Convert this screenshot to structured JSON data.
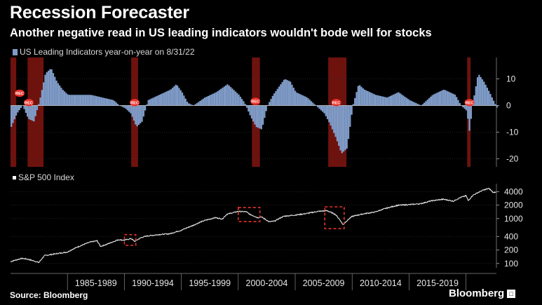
{
  "header": {
    "title": "Recession Forecaster",
    "subtitle": "Another negative read in US leading indicators wouldn't bode well for stocks"
  },
  "footer": {
    "source": "Source: Bloomberg",
    "brand": "Bloomberg"
  },
  "colors": {
    "background": "#000000",
    "bars": "#7f9cc8",
    "recession": "#7a1410",
    "highlight_box": "#e8322b",
    "sp_line": "#e6e6e6"
  },
  "chart_data": [
    {
      "type": "bar",
      "legend": "US Leading Indicators year-on-year on 8/31/22",
      "y_ticks": [
        "10",
        "0",
        "-10",
        "-20"
      ],
      "ylim": [
        -23,
        18
      ],
      "xlim": [
        1980.0,
        2022.67
      ],
      "recession_periods": [
        [
          1980.0,
          1980.5
        ],
        [
          1981.5,
          1982.9
        ],
        [
          1990.6,
          1991.2
        ],
        [
          2001.2,
          2001.9
        ],
        [
          2007.9,
          2009.5
        ],
        [
          2020.1,
          2020.4
        ]
      ],
      "series": [
        {
          "x": [
            1980.0,
            1980.5,
            1981.0,
            1981.5,
            1982.0,
            1982.5,
            1983.0,
            1983.5,
            1984.0,
            1984.5,
            1985.0,
            1986.0,
            1987.0,
            1988.0,
            1989.0,
            1989.5,
            1990.0,
            1990.5,
            1991.0,
            1991.5,
            1992.0,
            1993.0,
            1994.0,
            1994.5,
            1995.0,
            1995.5,
            1996.0,
            1997.0,
            1998.0,
            1999.0,
            2000.0,
            2000.5,
            2001.0,
            2001.5,
            2002.0,
            2002.5,
            2003.0,
            2004.0,
            2004.5,
            2005.0,
            2006.0,
            2006.5,
            2007.0,
            2007.5,
            2008.0,
            2008.5,
            2009.0,
            2009.5,
            2010.0,
            2010.5,
            2011.0,
            2012.0,
            2013.0,
            2014.0,
            2015.0,
            2016.0,
            2017.0,
            2018.0,
            2019.0,
            2019.5,
            2020.0,
            2020.25,
            2020.5,
            2021.0,
            2021.5,
            2022.0,
            2022.67
          ],
          "values": [
            -8,
            -3,
            0,
            -5,
            -6,
            2,
            12,
            14,
            9,
            6,
            4,
            4,
            4,
            3,
            2,
            0,
            -1,
            -3,
            -8,
            -6,
            2,
            4,
            6,
            8,
            5,
            1,
            0,
            3,
            5,
            8,
            4,
            1,
            -4,
            -8,
            -9,
            0,
            4,
            10,
            9,
            5,
            3,
            1,
            -1,
            -3,
            -7,
            -12,
            -18,
            -16,
            0,
            8,
            6,
            4,
            3,
            5,
            2,
            0,
            4,
            6,
            4,
            0,
            -2,
            -10,
            0,
            12,
            9,
            5,
            -1
          ]
        }
      ],
      "annotations": [
        "REC",
        "REC",
        "REC",
        "REC",
        "REC",
        "REC"
      ]
    },
    {
      "type": "line",
      "legend": "S&P 500 Index",
      "scale": "log",
      "y_ticks": [
        "4000",
        "2000",
        "1000",
        "400",
        "200",
        "100"
      ],
      "ylim": [
        80,
        6000
      ],
      "xlim": [
        1980.0,
        2022.67
      ],
      "x_ticks": [
        "1985-1989",
        "1990-1994",
        "1995-1999",
        "2000-2004",
        "2005-2009",
        "2010-2014",
        "2015-2019"
      ],
      "highlighted_periods": [
        [
          1990.0,
          1991.0
        ],
        [
          2000.0,
          2001.9
        ],
        [
          2007.6,
          2009.3
        ]
      ],
      "series": [
        {
          "x": [
            1980.0,
            1980.5,
            1981.0,
            1981.5,
            1982.0,
            1982.5,
            1983.0,
            1984.0,
            1985.0,
            1986.0,
            1987.0,
            1987.6,
            1987.9,
            1988.5,
            1989.5,
            1990.0,
            1990.6,
            1990.9,
            1991.5,
            1992.0,
            1993.0,
            1994.0,
            1995.0,
            1996.0,
            1997.0,
            1998.0,
            1998.6,
            1999.0,
            2000.0,
            2000.7,
            2001.0,
            2001.7,
            2002.0,
            2002.7,
            2003.2,
            2004.0,
            2005.0,
            2006.0,
            2007.0,
            2007.8,
            2008.5,
            2009.2,
            2010.0,
            2011.0,
            2012.0,
            2013.0,
            2014.0,
            2015.0,
            2016.0,
            2017.0,
            2018.0,
            2018.9,
            2019.5,
            2020.0,
            2020.2,
            2020.6,
            2021.0,
            2021.5,
            2022.0,
            2022.4,
            2022.67
          ],
          "values": [
            110,
            120,
            130,
            125,
            115,
            105,
            150,
            165,
            180,
            240,
            300,
            320,
            240,
            270,
            340,
            330,
            360,
            310,
            380,
            410,
            440,
            460,
            550,
            700,
            900,
            1050,
            980,
            1250,
            1450,
            1420,
            1250,
            1050,
            1100,
            850,
            880,
            1130,
            1200,
            1300,
            1450,
            1500,
            1250,
            730,
            1120,
            1280,
            1400,
            1700,
            1980,
            2050,
            2150,
            2500,
            2700,
            2450,
            2950,
            3230,
            2500,
            3300,
            3750,
            4300,
            4700,
            3800,
            4000
          ]
        }
      ]
    }
  ]
}
